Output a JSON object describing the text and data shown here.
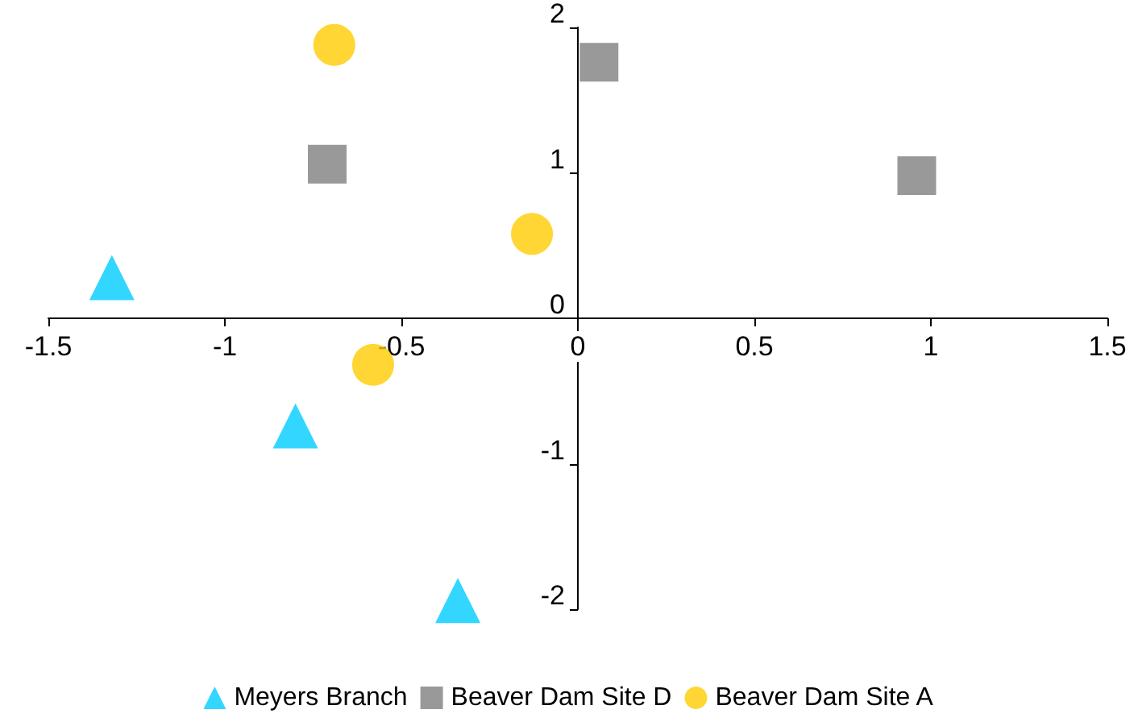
{
  "chart_data": {
    "type": "scatter",
    "xlim": [
      -1.5,
      1.5
    ],
    "xticks": [
      -1.5,
      -1,
      -0.5,
      0,
      0.5,
      1,
      1.5
    ],
    "ylim": [
      -2,
      2
    ],
    "yticks": [
      -2,
      -1,
      0,
      1,
      2
    ],
    "legend": "bottom",
    "series": [
      {
        "name": "Meyers Branch",
        "color": "#00ccff",
        "marker": "triangle",
        "x": [
          -1.32,
          -0.8,
          -0.34
        ],
        "values": [
          0.28,
          -0.74,
          -1.94
        ]
      },
      {
        "name": "Beaver Dam Site D",
        "color": "#808080",
        "marker": "square",
        "x": [
          -0.71,
          0.06,
          0.96
        ],
        "values": [
          1.06,
          1.76,
          0.98
        ]
      },
      {
        "name": "Beaver Dam Site A",
        "color": "#ffcc00",
        "marker": "circle",
        "x": [
          -0.69,
          -0.13,
          -0.58
        ],
        "values": [
          1.88,
          0.58,
          -0.32
        ]
      }
    ]
  }
}
